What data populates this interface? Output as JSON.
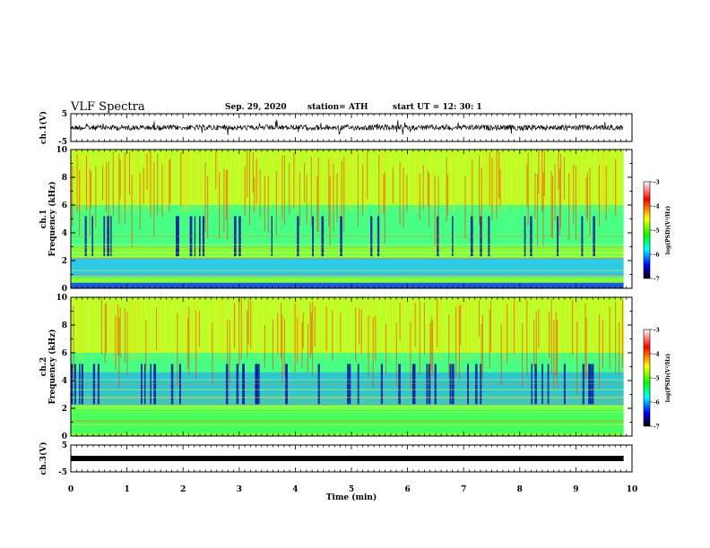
{
  "header": {
    "title": "VLF Spectra",
    "date": "Sep. 29, 2020",
    "station": "station= ATH",
    "start": "start  UT =   12: 30: 1"
  },
  "chart_data": [
    {
      "type": "line",
      "panel": "ch1-waveform",
      "ylabel": "ch.1(V)",
      "ylim": [
        -5,
        5
      ],
      "yticks": [
        "5",
        "-5"
      ],
      "xlim": [
        0,
        10
      ],
      "series": [
        {
          "x_range": [
            0,
            9.85
          ],
          "baseline": 0
        }
      ]
    },
    {
      "type": "heatmap",
      "panel": "ch1-spectrogram",
      "ylabel": "ch.1\nFrequency (kHz)",
      "ylim": [
        0,
        10
      ],
      "yticks": [
        "0",
        "2",
        "4",
        "6",
        "8",
        "10"
      ],
      "xlim": [
        0,
        10
      ],
      "x_extent": [
        0,
        9.85
      ],
      "colorbar": {
        "label": "log(PSD)(V²/Hz)",
        "range": [
          -7,
          -3
        ],
        "ticks": [
          "-3",
          "-4",
          "-5",
          "-6",
          "-7"
        ]
      }
    },
    {
      "type": "heatmap",
      "panel": "ch2-spectrogram",
      "ylabel": "ch.2\nFrequency (kHz)",
      "ylim": [
        0,
        10
      ],
      "yticks": [
        "0",
        "2",
        "4",
        "6",
        "8",
        "10"
      ],
      "xlim": [
        0,
        10
      ],
      "x_extent": [
        0,
        9.85
      ],
      "colorbar": {
        "label": "log(PSD)(V²/Hz)",
        "range": [
          -7,
          -3
        ],
        "ticks": [
          "-3",
          "-4",
          "-5",
          "-6",
          "-7"
        ]
      }
    },
    {
      "type": "line",
      "panel": "ch3-waveform",
      "ylabel": "ch.3(V)",
      "ylim": [
        -5,
        5
      ],
      "yticks": [
        "5",
        "-5"
      ],
      "xlim": [
        0,
        10
      ],
      "series": [
        {
          "x_range": [
            0,
            9.85
          ],
          "baseline": 0
        }
      ]
    }
  ],
  "xaxis": {
    "label": "Time  (min)",
    "ticks": [
      "0",
      "1",
      "2",
      "3",
      "4",
      "5",
      "6",
      "7",
      "8",
      "9",
      "10"
    ]
  }
}
